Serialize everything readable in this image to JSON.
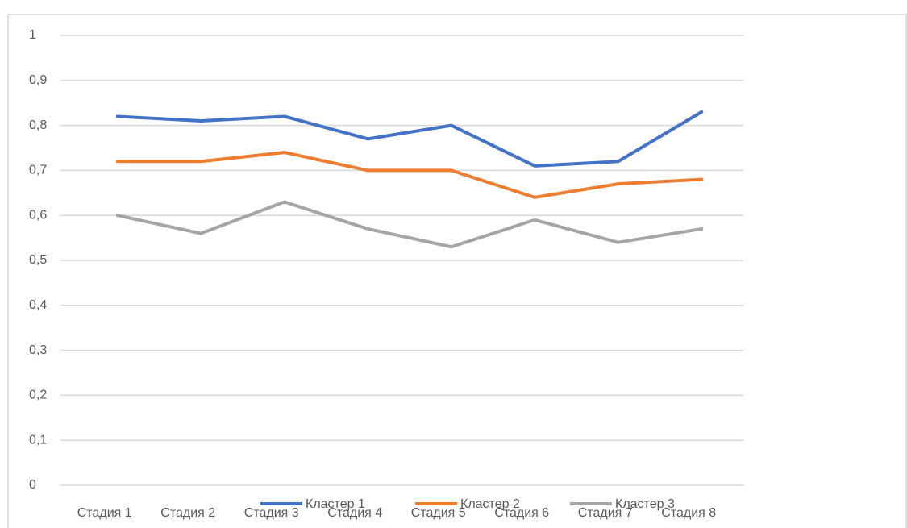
{
  "chart_data": {
    "type": "line",
    "categories": [
      "Стадия 1",
      "Стадия 2",
      "Стадия 3",
      "Стадия 4",
      "Стадия 5",
      "Стадия 6",
      "Стадия 7",
      "Стадия 8"
    ],
    "series": [
      {
        "name": "Кластер  1",
        "color": "#4472c4",
        "values": [
          0.82,
          0.81,
          0.82,
          0.77,
          0.8,
          0.71,
          0.72,
          0.83
        ]
      },
      {
        "name": "Кластер  2",
        "color": "#ed7d31",
        "values": [
          0.72,
          0.72,
          0.74,
          0.7,
          0.7,
          0.64,
          0.67,
          0.68
        ]
      },
      {
        "name": "Кластер  3",
        "color": "#a5a5a5",
        "values": [
          0.6,
          0.56,
          0.63,
          0.57,
          0.53,
          0.59,
          0.54,
          0.57
        ]
      }
    ],
    "ylim": [
      0,
      1
    ],
    "yticks": [
      0,
      {
        "value": 0.1,
        "label": "0,1"
      },
      {
        "value": 0.2,
        "label": "0,2"
      },
      {
        "value": 0.3,
        "label": "0,3"
      },
      {
        "value": 0.4,
        "label": "0,4"
      },
      {
        "value": 0.5,
        "label": "0,5"
      },
      {
        "value": 0.6,
        "label": "0,6"
      },
      {
        "value": 0.7,
        "label": "0,7"
      },
      {
        "value": 0.8,
        "label": "0,8"
      },
      {
        "value": 0.9,
        "label": "0,9"
      },
      1
    ],
    "grid": true,
    "legend": "bottom"
  }
}
